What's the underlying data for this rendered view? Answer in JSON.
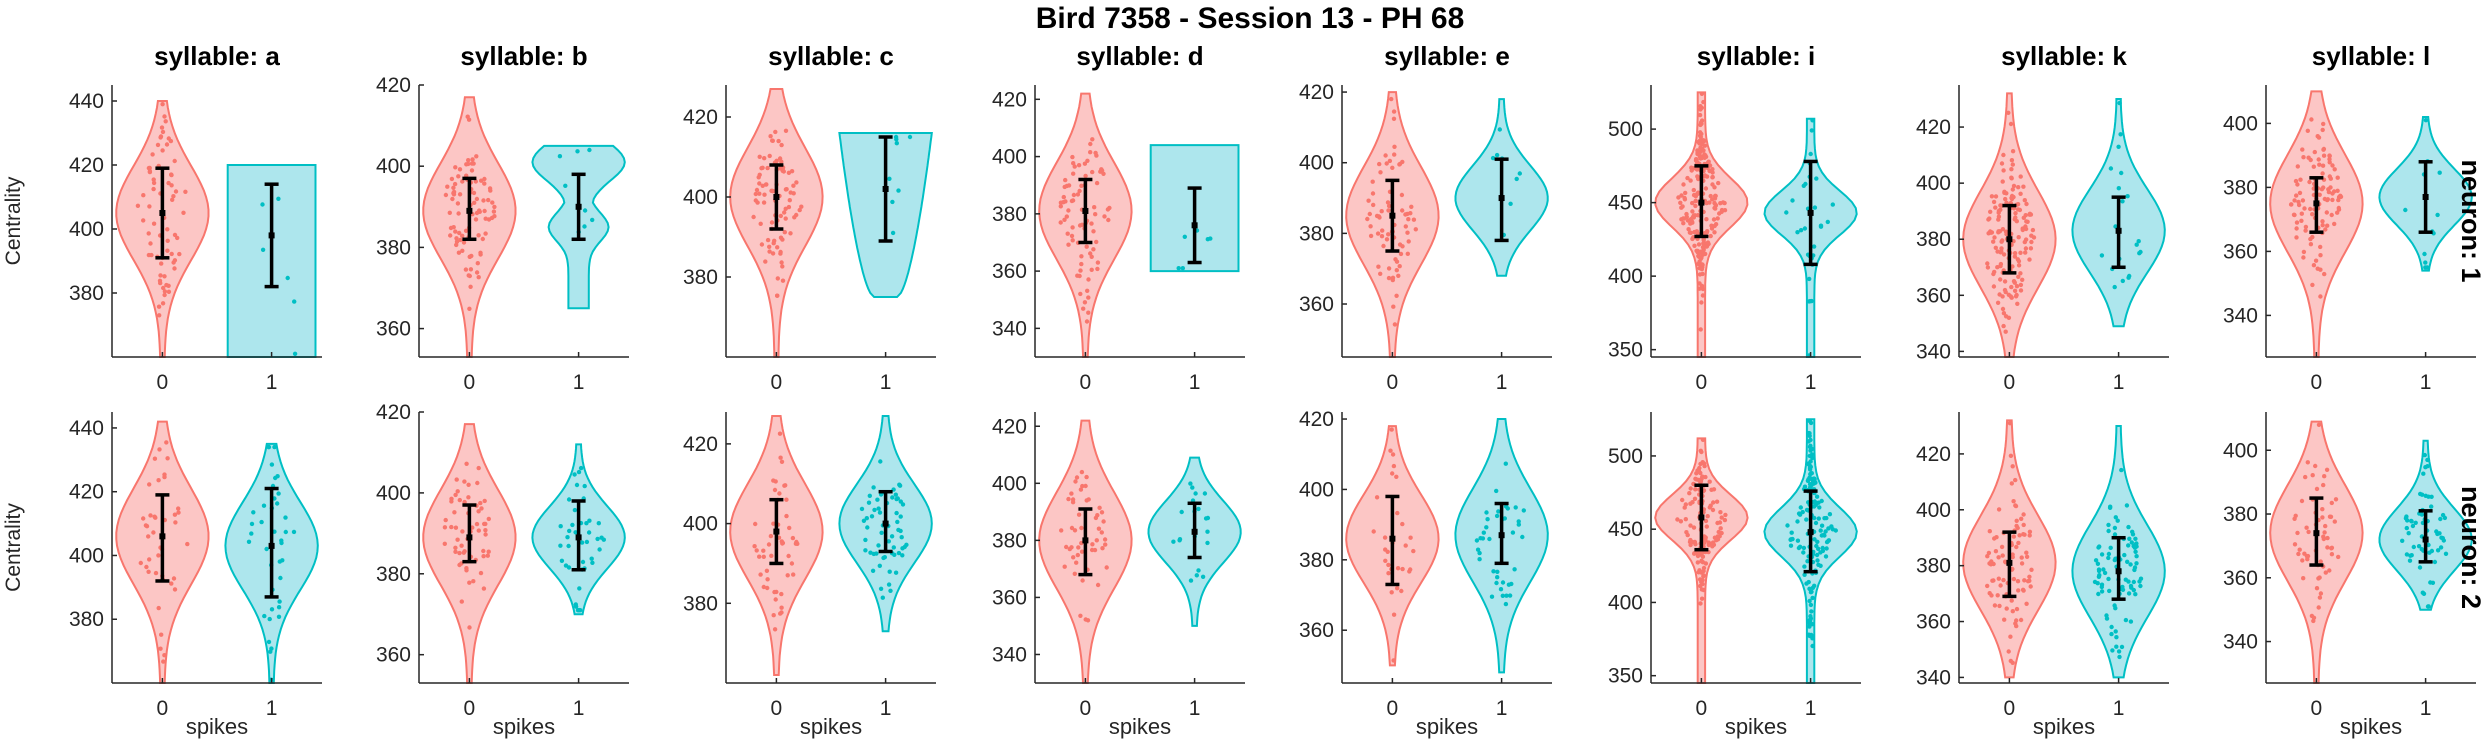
{
  "title": "Bird 7358 - Session 13 - PH 68",
  "ylabel": "Centrality",
  "xlabel": "spikes",
  "row_labels": [
    "neuron: 1",
    "neuron: 2"
  ],
  "colors": {
    "group0": "#f8766d",
    "group1": "#00bfc4",
    "fill0": "#fbbcbb",
    "fill1": "#9fe2ea",
    "errorbar": "#000000"
  },
  "chart_data": {
    "type": "violin",
    "title": "Bird 7358 - Session 13 - PH 68",
    "xlabel": "spikes",
    "ylabel": "Centrality",
    "categories": [
      "0",
      "1"
    ],
    "panels": [
      {
        "row": "neuron: 1",
        "syllable": "syllable: a",
        "ylim": [
          360,
          445
        ],
        "yticks": [
          380,
          400,
          420,
          440
        ],
        "groups": [
          {
            "x": "0",
            "min": 360,
            "max": 440,
            "mean": 405,
            "err_low": 391,
            "err_high": 419,
            "n": 70,
            "shape": "normal"
          },
          {
            "x": "1",
            "min": 360,
            "max": 420,
            "mean": 398,
            "err_low": 382,
            "err_high": 414,
            "n": 6,
            "shape": "flat"
          }
        ]
      },
      {
        "row": "neuron: 1",
        "syllable": "syllable: b",
        "ylim": [
          353,
          420
        ],
        "yticks": [
          360,
          380,
          400,
          420
        ],
        "groups": [
          {
            "x": "0",
            "min": 353,
            "max": 417,
            "mean": 389,
            "err_low": 382,
            "err_high": 397,
            "n": 90,
            "shape": "normal"
          },
          {
            "x": "1",
            "min": 365,
            "max": 405,
            "mean": 390,
            "err_low": 382,
            "err_high": 398,
            "n": 8,
            "shape": "bimodal"
          }
        ]
      },
      {
        "row": "neuron: 1",
        "syllable": "syllable: c",
        "ylim": [
          360,
          428
        ],
        "yticks": [
          380,
          400,
          420
        ],
        "groups": [
          {
            "x": "0",
            "min": 360,
            "max": 427,
            "mean": 400,
            "err_low": 392,
            "err_high": 408,
            "n": 90,
            "shape": "normal"
          },
          {
            "x": "1",
            "min": 375,
            "max": 416,
            "mean": 402,
            "err_low": 389,
            "err_high": 415,
            "n": 8,
            "shape": "top"
          }
        ]
      },
      {
        "row": "neuron: 1",
        "syllable": "syllable: d",
        "ylim": [
          330,
          425
        ],
        "yticks": [
          340,
          360,
          380,
          400,
          420
        ],
        "groups": [
          {
            "x": "0",
            "min": 330,
            "max": 422,
            "mean": 381,
            "err_low": 370,
            "err_high": 392,
            "n": 80,
            "shape": "normal"
          },
          {
            "x": "1",
            "min": 360,
            "max": 404,
            "mean": 376,
            "err_low": 363,
            "err_high": 389,
            "n": 6,
            "shape": "flat"
          }
        ]
      },
      {
        "row": "neuron: 1",
        "syllable": "syllable: e",
        "ylim": [
          345,
          422
        ],
        "yticks": [
          360,
          380,
          400,
          420
        ],
        "groups": [
          {
            "x": "0",
            "min": 345,
            "max": 420,
            "mean": 385,
            "err_low": 375,
            "err_high": 395,
            "n": 70,
            "shape": "normal"
          },
          {
            "x": "1",
            "min": 368,
            "max": 418,
            "mean": 390,
            "err_low": 378,
            "err_high": 401,
            "n": 8,
            "shape": "normal"
          }
        ]
      },
      {
        "row": "neuron: 1",
        "syllable": "syllable: i",
        "ylim": [
          345,
          530
        ],
        "yticks": [
          350,
          400,
          450,
          500
        ],
        "groups": [
          {
            "x": "0",
            "min": 345,
            "max": 525,
            "mean": 450,
            "err_low": 427,
            "err_high": 475,
            "n": 220,
            "shape": "narrow"
          },
          {
            "x": "1",
            "min": 345,
            "max": 507,
            "mean": 443,
            "err_low": 408,
            "err_high": 478,
            "n": 30,
            "shape": "narrow"
          }
        ]
      },
      {
        "row": "neuron: 1",
        "syllable": "syllable: k",
        "ylim": [
          338,
          435
        ],
        "yticks": [
          340,
          360,
          380,
          400,
          420
        ],
        "groups": [
          {
            "x": "0",
            "min": 338,
            "max": 432,
            "mean": 380,
            "err_low": 368,
            "err_high": 392,
            "n": 150,
            "shape": "normal"
          },
          {
            "x": "1",
            "min": 349,
            "max": 430,
            "mean": 383,
            "err_low": 370,
            "err_high": 395,
            "n": 20,
            "shape": "normal"
          }
        ]
      },
      {
        "row": "neuron: 1",
        "syllable": "syllable: l",
        "ylim": [
          327,
          412
        ],
        "yticks": [
          340,
          360,
          380,
          400
        ],
        "groups": [
          {
            "x": "0",
            "min": 327,
            "max": 410,
            "mean": 375,
            "err_low": 366,
            "err_high": 383,
            "n": 110,
            "shape": "normal"
          },
          {
            "x": "1",
            "min": 354,
            "max": 402,
            "mean": 377,
            "err_low": 366,
            "err_high": 388,
            "n": 12,
            "shape": "normal"
          }
        ]
      },
      {
        "row": "neuron: 2",
        "syllable": "syllable: a",
        "ylim": [
          360,
          445
        ],
        "yticks": [
          380,
          400,
          420,
          440
        ],
        "groups": [
          {
            "x": "0",
            "min": 360,
            "max": 442,
            "mean": 406,
            "err_low": 392,
            "err_high": 419,
            "n": 40,
            "shape": "normal"
          },
          {
            "x": "1",
            "min": 360,
            "max": 435,
            "mean": 403,
            "err_low": 387,
            "err_high": 421,
            "n": 40,
            "shape": "normal"
          }
        ]
      },
      {
        "row": "neuron: 2",
        "syllable": "syllable: b",
        "ylim": [
          353,
          420
        ],
        "yticks": [
          360,
          380,
          400,
          420
        ],
        "groups": [
          {
            "x": "0",
            "min": 353,
            "max": 417,
            "mean": 389,
            "err_low": 383,
            "err_high": 397,
            "n": 60,
            "shape": "normal"
          },
          {
            "x": "1",
            "min": 370,
            "max": 412,
            "mean": 389,
            "err_low": 381,
            "err_high": 398,
            "n": 40,
            "shape": "normal"
          }
        ]
      },
      {
        "row": "neuron: 2",
        "syllable": "syllable: c",
        "ylim": [
          360,
          428
        ],
        "yticks": [
          380,
          400,
          420
        ],
        "groups": [
          {
            "x": "0",
            "min": 362,
            "max": 427,
            "mean": 398,
            "err_low": 390,
            "err_high": 406,
            "n": 50,
            "shape": "normal"
          },
          {
            "x": "1",
            "min": 373,
            "max": 427,
            "mean": 400,
            "err_low": 393,
            "err_high": 408,
            "n": 60,
            "shape": "normal"
          }
        ]
      },
      {
        "row": "neuron: 2",
        "syllable": "syllable: d",
        "ylim": [
          330,
          425
        ],
        "yticks": [
          340,
          360,
          380,
          400,
          420
        ],
        "groups": [
          {
            "x": "0",
            "min": 330,
            "max": 422,
            "mean": 380,
            "err_low": 368,
            "err_high": 391,
            "n": 50,
            "shape": "normal"
          },
          {
            "x": "1",
            "min": 350,
            "max": 409,
            "mean": 383,
            "err_low": 374,
            "err_high": 393,
            "n": 20,
            "shape": "normal"
          }
        ]
      },
      {
        "row": "neuron: 2",
        "syllable": "syllable: e",
        "ylim": [
          345,
          422
        ],
        "yticks": [
          360,
          380,
          400,
          420
        ],
        "groups": [
          {
            "x": "0",
            "min": 350,
            "max": 418,
            "mean": 386,
            "err_low": 373,
            "err_high": 398,
            "n": 30,
            "shape": "normal"
          },
          {
            "x": "1",
            "min": 348,
            "max": 420,
            "mean": 387,
            "err_low": 379,
            "err_high": 396,
            "n": 40,
            "shape": "normal"
          }
        ]
      },
      {
        "row": "neuron: 2",
        "syllable": "syllable: i",
        "ylim": [
          345,
          530
        ],
        "yticks": [
          350,
          400,
          450,
          500
        ],
        "groups": [
          {
            "x": "0",
            "min": 345,
            "max": 512,
            "mean": 458,
            "err_low": 436,
            "err_high": 480,
            "n": 140,
            "shape": "narrow"
          },
          {
            "x": "1",
            "min": 345,
            "max": 525,
            "mean": 448,
            "err_low": 421,
            "err_high": 476,
            "n": 160,
            "shape": "narrow"
          }
        ]
      },
      {
        "row": "neuron: 2",
        "syllable": "syllable: k",
        "ylim": [
          338,
          435
        ],
        "yticks": [
          340,
          360,
          380,
          400,
          420
        ],
        "groups": [
          {
            "x": "0",
            "min": 340,
            "max": 432,
            "mean": 381,
            "err_low": 369,
            "err_high": 392,
            "n": 90,
            "shape": "normal"
          },
          {
            "x": "1",
            "min": 340,
            "max": 430,
            "mean": 378,
            "err_low": 368,
            "err_high": 390,
            "n": 90,
            "shape": "normal"
          }
        ]
      },
      {
        "row": "neuron: 2",
        "syllable": "syllable: l",
        "ylim": [
          327,
          412
        ],
        "yticks": [
          340,
          360,
          380,
          400
        ],
        "groups": [
          {
            "x": "0",
            "min": 327,
            "max": 409,
            "mean": 374,
            "err_low": 364,
            "err_high": 385,
            "n": 60,
            "shape": "normal"
          },
          {
            "x": "1",
            "min": 350,
            "max": 403,
            "mean": 372,
            "err_low": 365,
            "err_high": 381,
            "n": 60,
            "shape": "normal"
          }
        ]
      }
    ]
  }
}
